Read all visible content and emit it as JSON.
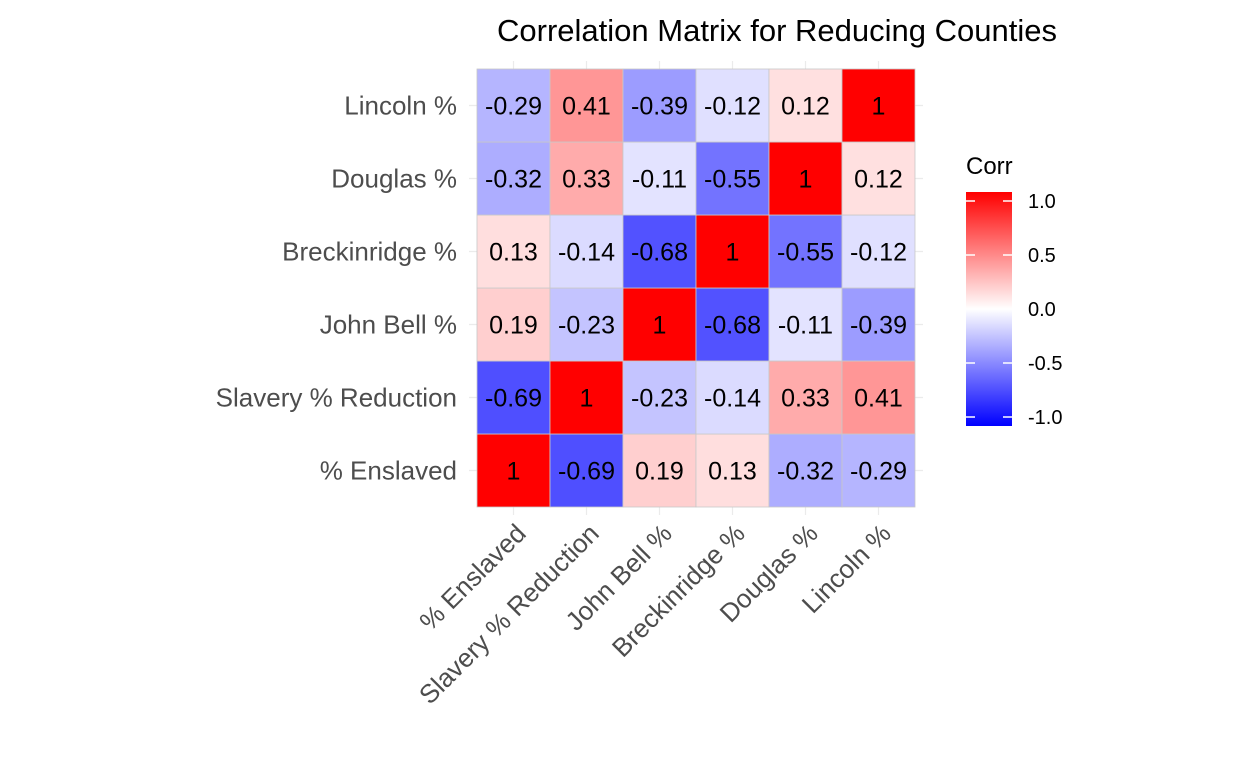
{
  "chart_data": {
    "type": "heatmap",
    "title": "Correlation Matrix for Reducing Counties",
    "variables": [
      "% Enslaved",
      "Slavery % Reduction",
      "John Bell %",
      "Breckinridge %",
      "Douglas %",
      "Lincoln %"
    ],
    "cell_labels": [
      [
        "1",
        "-0.69",
        "0.19",
        "0.13",
        "-0.32",
        "-0.29"
      ],
      [
        "-0.69",
        "1",
        "-0.23",
        "-0.14",
        "0.33",
        "0.41"
      ],
      [
        "0.19",
        "-0.23",
        "1",
        "-0.68",
        "-0.11",
        "-0.39"
      ],
      [
        "0.13",
        "-0.14",
        "-0.68",
        "1",
        "-0.55",
        "-0.12"
      ],
      [
        "-0.32",
        "0.33",
        "-0.11",
        "-0.55",
        "1",
        "0.12"
      ],
      [
        "-0.29",
        "0.41",
        "-0.39",
        "-0.12",
        "0.12",
        "1"
      ]
    ],
    "values": [
      [
        1,
        -0.69,
        0.19,
        0.13,
        -0.32,
        -0.29
      ],
      [
        -0.69,
        1,
        -0.23,
        -0.14,
        0.33,
        0.41
      ],
      [
        0.19,
        -0.23,
        1,
        -0.68,
        -0.11,
        -0.39
      ],
      [
        0.13,
        -0.14,
        -0.68,
        1,
        -0.55,
        -0.12
      ],
      [
        -0.32,
        0.33,
        -0.11,
        -0.55,
        1,
        0.12
      ],
      [
        -0.29,
        0.41,
        -0.39,
        -0.12,
        0.12,
        1
      ]
    ],
    "legend": {
      "title": "Corr",
      "ticks": [
        1.0,
        0.5,
        0.0,
        -0.5,
        -1.0
      ],
      "tick_labels": [
        "1.0",
        "0.5",
        "0.0",
        "-0.5",
        "-1.0"
      ],
      "limits": [
        -1,
        1
      ],
      "low_color": "#0000ff",
      "mid_color": "#ffffff",
      "high_color": "#ff0000",
      "position": "right"
    },
    "grid": true
  }
}
